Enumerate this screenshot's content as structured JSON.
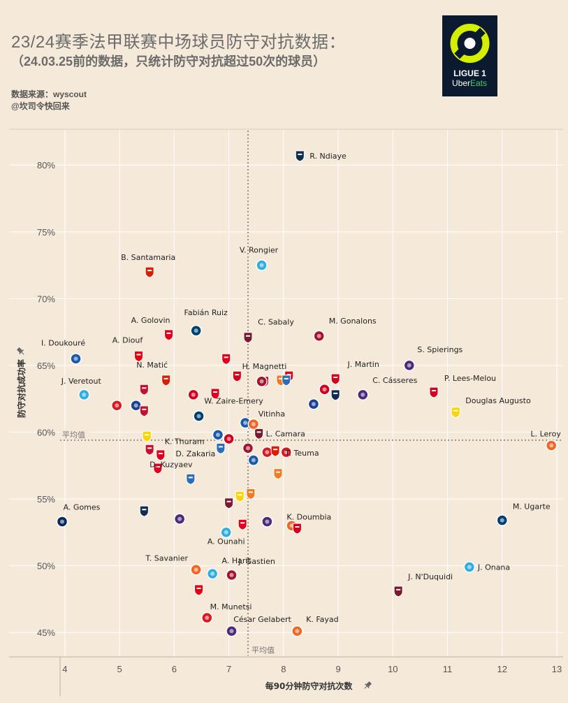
{
  "header": {
    "title": "23/24赛季法甲联赛中场球员防守对抗数据：",
    "subtitle": "（24.03.25前的数据，只统计防守对抗超过50次的球员）",
    "source": "数据来源：wyscout",
    "author": "@坎司令快回来"
  },
  "logo": {
    "line1": "LIGUE 1",
    "line2a": "Uber",
    "line2b": "Eats"
  },
  "colors": {
    "background": "#f5e9d9",
    "grid": "#ffffff",
    "avg_line": "#a08f85",
    "logo_bg": "#0b1a2e",
    "logo_lime": "#d4f000"
  },
  "chart_data": {
    "type": "scatter",
    "xlabel": "每90分钟防守对抗次数",
    "ylabel": "防守对抗成功率",
    "xlim": [
      3.95,
      13.0
    ],
    "ylim": [
      43.8,
      82.0
    ],
    "x_ticks": [
      4,
      5,
      6,
      7,
      8,
      9,
      10,
      11,
      12,
      13
    ],
    "y_ticks": [
      45,
      50,
      55,
      60,
      65,
      70,
      75,
      80
    ],
    "y_tick_labels": [
      "45%",
      "50%",
      "55%",
      "60%",
      "65%",
      "70%",
      "75%",
      "80%"
    ],
    "avg_x": 7.35,
    "avg_y": 59.4,
    "avg_label": "平均值",
    "grid": true,
    "points": [
      {
        "name": "R. Ndiaye",
        "x": 8.3,
        "y": 80.7,
        "club": "Le Havre",
        "color": "#0f2d52"
      },
      {
        "name": "V. Rongier",
        "x": 7.6,
        "y": 72.5,
        "club": "Marseille",
        "color": "#2faee0"
      },
      {
        "name": "B. Santamaria",
        "x": 5.55,
        "y": 72.0,
        "club": "Rennes",
        "color": "#d81e05"
      },
      {
        "name": "A. Golovin",
        "x": 5.9,
        "y": 67.3,
        "club": "Monaco",
        "color": "#e2001a"
      },
      {
        "name": "Fabián Ruiz",
        "x": 6.4,
        "y": 67.6,
        "club": "PSG",
        "color": "#004170"
      },
      {
        "name": "C. Sabaly",
        "x": 7.35,
        "y": 67.1,
        "club": "Metz",
        "color": "#7a1a2e"
      },
      {
        "name": "M. Gonalons",
        "x": 8.65,
        "y": 67.2,
        "club": "Clermont",
        "color": "#a3152f"
      },
      {
        "name": "I. Doukouré",
        "x": 4.2,
        "y": 65.5,
        "club": "Strasbourg",
        "color": "#1a5aa8"
      },
      {
        "name": "A. Diouf",
        "x": 5.35,
        "y": 65.7,
        "club": "Lens",
        "color": "#e8000e"
      },
      {
        "name": "S. Spierings",
        "x": 10.3,
        "y": 65.0,
        "club": "Toulouse",
        "color": "#4b2a7a"
      },
      {
        "name": "N. Matić",
        "x": 5.85,
        "y": 63.9,
        "club": "Rennes",
        "color": "#d81e05"
      },
      {
        "name": "H. Magnetti",
        "x": 7.65,
        "y": 63.8,
        "club": "Brest",
        "color": "#d5001c"
      },
      {
        "name": "J. Martin",
        "x": 8.95,
        "y": 64.0,
        "club": "Brest",
        "color": "#d5001c"
      },
      {
        "name": "J. Veretout",
        "x": 4.35,
        "y": 62.8,
        "club": "Marseille",
        "color": "#2faee0"
      },
      {
        "name": "C. Cásseres",
        "x": 9.45,
        "y": 62.8,
        "club": "Toulouse",
        "color": "#4b2a7a"
      },
      {
        "name": "P. Lees-Melou",
        "x": 10.75,
        "y": 63.0,
        "club": "Brest",
        "color": "#d5001c"
      },
      {
        "name": "Douglas Augusto",
        "x": 11.15,
        "y": 61.5,
        "club": "Nantes",
        "color": "#fcd405"
      },
      {
        "name": "W. Zaire-Emery",
        "x": 6.45,
        "y": 61.2,
        "club": "PSG",
        "color": "#004170"
      },
      {
        "name": "Vitinha",
        "x": 7.4,
        "y": 60.6,
        "club": "PSG",
        "color": "#004170"
      },
      {
        "name": "L. Camara",
        "x": 7.55,
        "y": 59.9,
        "club": "Metz",
        "color": "#7a1a2e"
      },
      {
        "name": "L. Leroy",
        "x": 12.9,
        "y": 59.0,
        "club": "Montpellier",
        "color": "#f26522"
      },
      {
        "name": "T. Teuma",
        "x": 7.7,
        "y": 58.5,
        "club": "Reims",
        "color": "#d71920"
      },
      {
        "name": "K. Thuram",
        "x": 5.55,
        "y": 58.7,
        "club": "Nice",
        "color": "#c8102e"
      },
      {
        "name": "D. Zakaria",
        "x": 5.75,
        "y": 58.3,
        "club": "Monaco",
        "color": "#e2001a"
      },
      {
        "name": "D. Kuzyaev",
        "x": 6.3,
        "y": 56.5,
        "club": "Le Havre",
        "color": "#2c6fb7"
      },
      {
        "name": "A. Gomes",
        "x": 3.95,
        "y": 53.3,
        "club": "Montpellier",
        "color": "#0a2a5c"
      },
      {
        "name": "K. Doumbia",
        "x": 7.7,
        "y": 53.3,
        "club": "Toulouse",
        "color": "#4b2a7a"
      },
      {
        "name": "M. Ugarte",
        "x": 12.0,
        "y": 53.4,
        "club": "PSG",
        "color": "#004170"
      },
      {
        "name": "A. Ounahi",
        "x": 6.95,
        "y": 52.5,
        "club": "Marseille",
        "color": "#2faee0"
      },
      {
        "name": "T. Savanier",
        "x": 6.4,
        "y": 49.7,
        "club": "Montpellier",
        "color": "#f26522"
      },
      {
        "name": "A. Harit",
        "x": 6.7,
        "y": 49.4,
        "club": "Marseille",
        "color": "#2faee0"
      },
      {
        "name": "J. Onana",
        "x": 11.4,
        "y": 49.9,
        "club": "Marseille",
        "color": "#2faee0"
      },
      {
        "name": "J. Gastien",
        "x": 7.05,
        "y": 49.3,
        "club": "Clermont",
        "color": "#a3152f"
      },
      {
        "name": "J. N'Duquidi",
        "x": 10.1,
        "y": 48.1,
        "club": "Metz",
        "color": "#7a1a2e"
      },
      {
        "name": "M. Munetsi",
        "x": 6.45,
        "y": 48.2,
        "club": "Lens",
        "color": "#e8000e"
      },
      {
        "name": "César Gelabert",
        "x": 7.05,
        "y": 45.1,
        "club": "Toulouse",
        "color": "#4b2a7a"
      },
      {
        "name": "K. Fayad",
        "x": 8.25,
        "y": 45.1,
        "club": "Montpellier",
        "color": "#f26522"
      },
      {
        "club": "Monaco",
        "x": 6.95,
        "y": 65.5,
        "color": "#e2001a"
      },
      {
        "club": "Brest",
        "x": 7.15,
        "y": 64.2,
        "color": "#d5001c"
      },
      {
        "club": "Lens",
        "x": 8.1,
        "y": 64.2,
        "color": "#e8000e"
      },
      {
        "club": "Lorient",
        "x": 7.95,
        "y": 63.9,
        "color": "#f47920"
      },
      {
        "club": "Le Havre",
        "x": 8.05,
        "y": 63.9,
        "color": "#2c6fb7"
      },
      {
        "club": "Clermont",
        "x": 7.6,
        "y": 63.8,
        "color": "#a3152f"
      },
      {
        "club": "Nice",
        "x": 5.45,
        "y": 63.2,
        "color": "#c8102e"
      },
      {
        "club": "Monaco",
        "x": 6.75,
        "y": 62.9,
        "color": "#e2001a"
      },
      {
        "club": "Lille",
        "x": 6.35,
        "y": 62.8,
        "color": "#d1001f"
      },
      {
        "club": "Lille",
        "x": 8.75,
        "y": 63.2,
        "color": "#d1001f"
      },
      {
        "club": "Le Havre",
        "x": 8.95,
        "y": 62.8,
        "color": "#0f2d52"
      },
      {
        "club": "Lyon",
        "x": 8.55,
        "y": 62.1,
        "color": "#1c3f94"
      },
      {
        "club": "Reims",
        "x": 4.95,
        "y": 62.0,
        "color": "#d71920"
      },
      {
        "club": "Lyon",
        "x": 5.3,
        "y": 62.0,
        "color": "#1c3f94"
      },
      {
        "club": "Nice",
        "x": 5.45,
        "y": 61.6,
        "color": "#c8102e"
      },
      {
        "club": "Strasbourg",
        "x": 7.3,
        "y": 60.7,
        "color": "#1a5aa8"
      },
      {
        "club": "Montpellier",
        "x": 7.45,
        "y": 60.6,
        "color": "#f26522"
      },
      {
        "club": "Nantes",
        "x": 5.5,
        "y": 59.7,
        "color": "#fcd405"
      },
      {
        "club": "Strasbourg",
        "x": 6.8,
        "y": 59.8,
        "color": "#1a5aa8"
      },
      {
        "club": "Lille",
        "x": 7.0,
        "y": 59.5,
        "color": "#d1001f"
      },
      {
        "club": "Clermont",
        "x": 7.35,
        "y": 58.8,
        "color": "#a3152f"
      },
      {
        "club": "Le Havre",
        "x": 6.85,
        "y": 58.8,
        "color": "#2c6fb7"
      },
      {
        "club": "Rennes",
        "x": 7.85,
        "y": 58.6,
        "color": "#d81e05"
      },
      {
        "club": "Reims",
        "x": 8.05,
        "y": 58.5,
        "color": "#d71920"
      },
      {
        "club": "Strasbourg",
        "x": 7.45,
        "y": 57.9,
        "color": "#1a5aa8"
      },
      {
        "club": "Monaco",
        "x": 5.7,
        "y": 57.3,
        "color": "#e2001a"
      },
      {
        "club": "Lorient",
        "x": 7.9,
        "y": 56.9,
        "color": "#f47920"
      },
      {
        "club": "Nantes",
        "x": 7.2,
        "y": 55.2,
        "color": "#fcd405"
      },
      {
        "club": "Lorient",
        "x": 7.4,
        "y": 55.4,
        "color": "#f47920"
      },
      {
        "club": "Metz",
        "x": 7.0,
        "y": 54.7,
        "color": "#7a1a2e"
      },
      {
        "club": "Le Havre",
        "x": 5.45,
        "y": 54.1,
        "color": "#0f2d52"
      },
      {
        "club": "Toulouse",
        "x": 6.1,
        "y": 53.5,
        "color": "#4b2a7a"
      },
      {
        "club": "Monaco",
        "x": 7.25,
        "y": 53.1,
        "color": "#e2001a"
      },
      {
        "club": "Montpellier",
        "x": 8.15,
        "y": 53.0,
        "color": "#f26522"
      },
      {
        "club": "Brest",
        "x": 8.25,
        "y": 52.8,
        "color": "#d5001c"
      },
      {
        "club": "Reims",
        "x": 6.6,
        "y": 46.1,
        "color": "#d71920"
      }
    ]
  }
}
